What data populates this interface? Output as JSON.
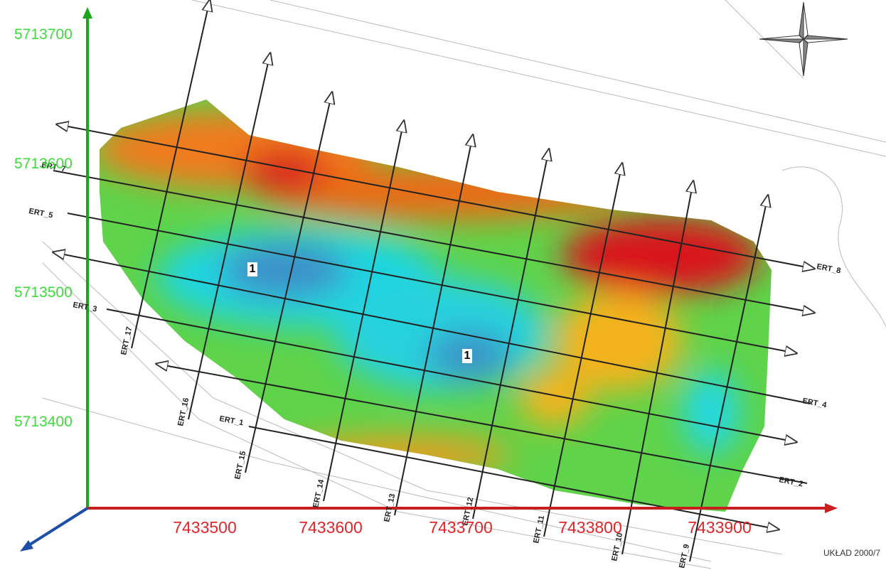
{
  "y_axis_labels": [
    "5713700",
    "5713600",
    "5713500",
    "5713400"
  ],
  "x_axis_labels": [
    "7433500",
    "7433600",
    "7433700",
    "7433800",
    "7433900"
  ],
  "horizontal_profiles": [
    "ERT_8",
    "ERT_7",
    "ERT_5",
    "ERT_4",
    "ERT_3",
    "ERT_2",
    "ERT_1"
  ],
  "vertical_profiles": [
    "ERT_17",
    "ERT_16",
    "ERT_15",
    "ERT_14",
    "ERT_13",
    "ERT_12",
    "ERT_11",
    "ERT_10",
    "ERT_9"
  ],
  "zone_labels": [
    "1",
    "1"
  ],
  "footer": "UKŁAD 2000/7"
}
